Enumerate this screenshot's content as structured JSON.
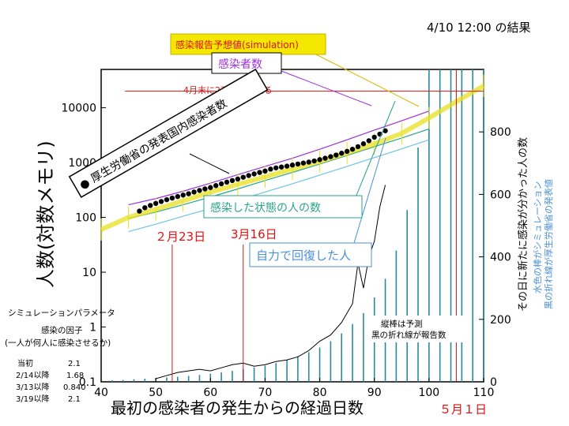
{
  "header": {
    "timestamp": "4/10 12:00 の結果"
  },
  "chart_data": {
    "type": "line",
    "xlabel": "最初の感染者の発生からの経過日数",
    "ylabel_left": "人数(対数メモリ)",
    "ylabel_right": "その日に新たに感染が分かった人の数",
    "right_note_1": "水色の棒がシミュレーション",
    "right_note_2": "黒の折れ線が厚生労働省の発表値",
    "x_range": [
      40,
      110
    ],
    "y_left_range": [
      0.1,
      50000
    ],
    "y_left_scale": "log",
    "y_right_range": [
      0,
      1000
    ],
    "x_ticks": [
      "40",
      "50",
      "60",
      "70",
      "80",
      "90",
      "100",
      "110"
    ],
    "y_left_ticks": [
      "0.1",
      "1",
      "10",
      "100",
      "1000",
      "10000"
    ],
    "y_right_ticks": [
      "0",
      "200",
      "400",
      "600",
      "800"
    ],
    "series": [
      {
        "name": "感染者数",
        "color": "#9b30d9",
        "x": [
          45,
          50,
          55,
          60,
          65,
          70,
          75,
          80,
          85,
          90,
          95,
          100
        ],
        "values": [
          170,
          220,
          300,
          420,
          600,
          850,
          1200,
          1750,
          2600,
          3900,
          5800,
          8700
        ]
      },
      {
        "name": "感染した状態の人の数",
        "color": "#2aa38a",
        "x": [
          45,
          50,
          55,
          60,
          65,
          70,
          75,
          80,
          85,
          90,
          95,
          100
        ],
        "values": [
          95,
          125,
          170,
          235,
          330,
          470,
          660,
          940,
          1350,
          1950,
          2800,
          4100
        ]
      },
      {
        "name": "自力で回復した人",
        "color": "#6cc3e8",
        "x": [
          45,
          50,
          55,
          60,
          65,
          70,
          75,
          80,
          85,
          90,
          95,
          100
        ],
        "values": [
          55,
          75,
          105,
          145,
          205,
          290,
          410,
          590,
          850,
          1230,
          1780,
          2600
        ]
      },
      {
        "name": "感染報告予想値(simulation)",
        "color": "#e8e020",
        "x": [
          40,
          45,
          50,
          55,
          60,
          65,
          70,
          75,
          80,
          85,
          90,
          95,
          100,
          105,
          110
        ],
        "values": [
          60,
          100,
          140,
          200,
          290,
          400,
          550,
          760,
          1050,
          1500,
          2200,
          3400,
          6500,
          13000,
          25000
        ]
      },
      {
        "name": "厚生労働省の発表国内感染者数",
        "color": "#000000",
        "x": [
          47,
          48,
          49,
          50,
          51,
          52,
          53,
          54,
          55,
          56,
          57,
          58,
          59,
          60,
          61,
          62,
          63,
          64,
          65,
          66,
          67,
          68,
          69,
          70,
          71,
          72,
          73,
          74,
          75,
          76,
          77,
          78,
          79,
          80,
          81,
          82,
          83,
          84,
          85,
          86,
          87,
          88,
          89,
          90,
          91,
          92
        ],
        "values": [
          130,
          150,
          165,
          180,
          195,
          210,
          225,
          240,
          255,
          270,
          290,
          310,
          330,
          350,
          380,
          410,
          440,
          470,
          500,
          540,
          580,
          620,
          660,
          700,
          760,
          800,
          830,
          860,
          900,
          940,
          980,
          1020,
          1070,
          1130,
          1200,
          1280,
          1370,
          1480,
          1600,
          1750,
          1950,
          2200,
          2500,
          2900,
          3300,
          3800
        ]
      }
    ],
    "daily_reported": {
      "name": "黒の折れ線が厚生労働省の発表値",
      "x": [
        50,
        52,
        54,
        56,
        58,
        60,
        62,
        64,
        66,
        68,
        70,
        72,
        74,
        76,
        78,
        80,
        82,
        84,
        86,
        87,
        88,
        89,
        90,
        91,
        92
      ],
      "values": [
        10,
        20,
        30,
        35,
        40,
        35,
        45,
        55,
        60,
        50,
        55,
        65,
        70,
        80,
        100,
        130,
        150,
        190,
        250,
        380,
        300,
        400,
        450,
        560,
        630
      ]
    },
    "daily_simulation": {
      "name": "水色の棒がシミュレーション",
      "x": [
        42,
        44,
        46,
        48,
        50,
        52,
        54,
        56,
        58,
        60,
        62,
        64,
        66,
        68,
        70,
        72,
        74,
        76,
        78,
        80,
        82,
        84,
        86,
        88,
        90,
        92,
        94,
        96,
        98,
        100,
        102,
        104,
        106,
        108,
        110
      ],
      "values": [
        5,
        6,
        8,
        10,
        12,
        14,
        16,
        19,
        22,
        26,
        30,
        35,
        40,
        46,
        52,
        60,
        70,
        82,
        95,
        110,
        130,
        155,
        185,
        220,
        270,
        330,
        420,
        550,
        750,
        1000,
        1000,
        1000,
        1000,
        1000,
        1000
      ]
    },
    "annotations": {
      "sim_label": "感染報告予想値(simulation)",
      "infected_label": "感染者数",
      "mhlw_label": "● 厚生労働省の発表国内感染者数",
      "threshold_label": "4月末に2万人を超える",
      "state_label": "感染した状態の人の数",
      "recovered_label": "自力で回復した人",
      "date_feb23": "２月23日",
      "date_mar16": "3月16日",
      "date_may1": "５月１日",
      "bar_note_1": "縦棒は予測",
      "bar_note_2": "黒の折れ線が報告数"
    },
    "threshold_value": 20000,
    "markers": [
      {
        "x": 53,
        "label_key": "date_feb23"
      },
      {
        "x": 66,
        "label_key": "date_mar16"
      },
      {
        "x": 105,
        "label_key": "date_may1"
      }
    ]
  },
  "params": {
    "title": "シミュレーションパラメータ",
    "factor_line1": "感染の因子",
    "factor_line2": "(一人が何人に感染させるか)",
    "rows": [
      {
        "label": "当初",
        "value": "2.1"
      },
      {
        "label": "2/14以降",
        "value": "1.68"
      },
      {
        "label": "3/13以降",
        "value": "0.840"
      },
      {
        "label": "3/19以降",
        "value": "2.1"
      }
    ]
  },
  "colors": {
    "red": "#dd1111",
    "blue": "#4a90d9",
    "green": "#2aa38a",
    "purple": "#9b30d9",
    "yellow": "#e8e020",
    "bar": "#2a8a9a"
  }
}
